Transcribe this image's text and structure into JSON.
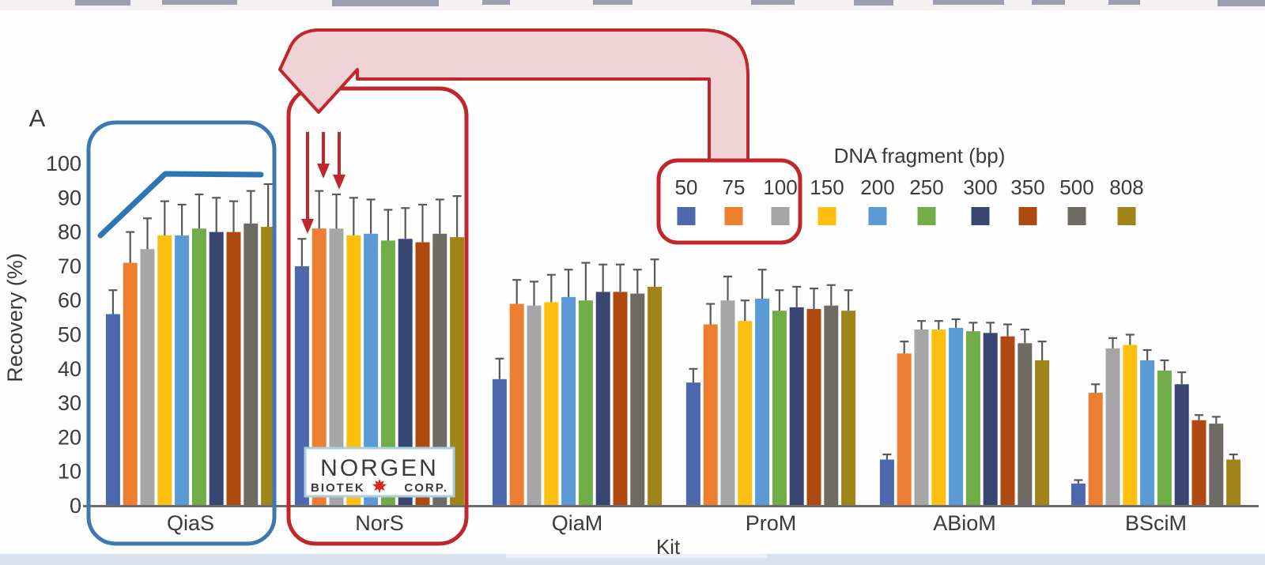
{
  "panel_label": "A",
  "y_axis": {
    "title": "Recovery (%)",
    "tick_labels": [
      "0",
      "10",
      "20",
      "30",
      "40",
      "50",
      "60",
      "70",
      "80",
      "90",
      "100"
    ]
  },
  "x_axis": {
    "title": "Kit"
  },
  "legend": {
    "title": "DNA fragment (bp)",
    "entries": [
      {
        "label": "50",
        "color": "#4e68ae"
      },
      {
        "label": "75",
        "color": "#ed7d31"
      },
      {
        "label": "100",
        "color": "#a6a6a6"
      },
      {
        "label": "150",
        "color": "#fdc010"
      },
      {
        "label": "200",
        "color": "#5b9bd5"
      },
      {
        "label": "250",
        "color": "#70ad47"
      },
      {
        "label": "300",
        "color": "#3a4672"
      },
      {
        "label": "350",
        "color": "#b0490f"
      },
      {
        "label": "500",
        "color": "#6e6a64"
      },
      {
        "label": "808",
        "color": "#a08419"
      }
    ]
  },
  "chart_data": {
    "type": "bar",
    "title": "",
    "xlabel": "Kit",
    "ylabel": "Recovery (%)",
    "ylim": [
      0,
      100
    ],
    "grid": false,
    "legend_position": "upper right",
    "categories": [
      "QiaS",
      "NorS",
      "QiaM",
      "ProM",
      "ABioM",
      "BSciM"
    ],
    "series": [
      {
        "name": "50",
        "color": "#4e68ae",
        "values": [
          56,
          70,
          37,
          36,
          13.5,
          6.5
        ],
        "errors_plus": [
          7,
          8,
          6,
          4,
          1.5,
          1
        ]
      },
      {
        "name": "75",
        "color": "#ed7d31",
        "values": [
          71,
          81,
          59,
          53,
          44.5,
          33
        ],
        "errors_plus": [
          9,
          11,
          7,
          6,
          3.5,
          2.5
        ]
      },
      {
        "name": "100",
        "color": "#a6a6a6",
        "values": [
          75,
          81,
          58.5,
          60,
          51.5,
          46
        ],
        "errors_plus": [
          9,
          10,
          7,
          7,
          2.5,
          3
        ]
      },
      {
        "name": "150",
        "color": "#fdc010",
        "values": [
          79,
          79,
          59.5,
          54,
          51.5,
          47
        ],
        "errors_plus": [
          10,
          11,
          8,
          6,
          2.5,
          3
        ]
      },
      {
        "name": "200",
        "color": "#5b9bd5",
        "values": [
          79,
          79.5,
          61,
          60.5,
          52,
          42.5
        ],
        "errors_plus": [
          9,
          10,
          8,
          8.5,
          2.5,
          3
        ]
      },
      {
        "name": "250",
        "color": "#70ad47",
        "values": [
          81,
          77.5,
          60,
          57,
          51,
          39.5
        ],
        "errors_plus": [
          10,
          9,
          11,
          6,
          2.5,
          3
        ]
      },
      {
        "name": "300",
        "color": "#3a4672",
        "values": [
          80,
          78,
          62.5,
          58,
          50.5,
          35.5
        ],
        "errors_plus": [
          10,
          9,
          8,
          6,
          3,
          3.5
        ]
      },
      {
        "name": "350",
        "color": "#b0490f",
        "values": [
          80,
          77,
          62.5,
          57.5,
          49.5,
          25
        ],
        "errors_plus": [
          9,
          11,
          8,
          6,
          3.5,
          1.5
        ]
      },
      {
        "name": "500",
        "color": "#6e6a64",
        "values": [
          82.5,
          79.5,
          62,
          58.5,
          47.5,
          24
        ],
        "errors_plus": [
          9.5,
          10,
          7,
          6,
          4,
          2
        ]
      },
      {
        "name": "808",
        "color": "#a08419",
        "values": [
          81.5,
          78.5,
          64,
          57,
          42.5,
          13.5
        ],
        "errors_plus": [
          12.5,
          12,
          8,
          6,
          5.5,
          1.5
        ]
      }
    ]
  },
  "annotations": {
    "blue_box_color": "#3e78b2",
    "red_color": "#c0272d",
    "arrow_fill": "#f0d3d6",
    "trend_line_color": "#2e75b6",
    "logo": {
      "line1": "NORGEN",
      "line2_left": "BIOTEK",
      "line2_right": "CORP.",
      "text_color": "#3c7f9d",
      "border_color": "#a9cfe1",
      "leaf_color": "#d42b1e"
    }
  }
}
